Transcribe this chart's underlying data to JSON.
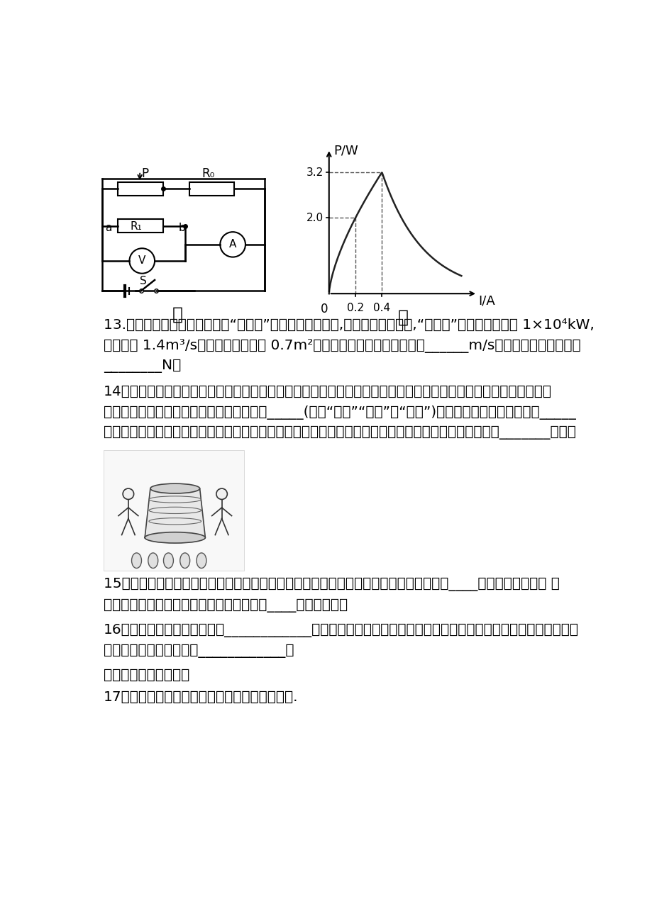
{
  "background_color": "#ffffff",
  "page_width": 9.2,
  "page_height": 13.02,
  "dpi": 100,
  "text_color": "#000000",
  "q13_lines": [
    "13.我国自主研制的绍吸挖泥船“天鼲号”达到世界先进水平,若某段工作时间内,“天鼲号”的泥泵功率恒为 1×10⁴kW,",
    "排泥量为 1.4m³/s，排泥管截面积为 0.7m²，泥浆在管中的流动的速度为______m/s，泥泵对泥浆的推力为",
    "________N。"
  ],
  "q14_lines": [
    "14．陕西的酱酒业有着悠久的历史，周王朝在都城镐京就曾设置专职酒官。如图是将谷物倒入锅中熏制酒料的过程。",
    "灶台下木柴燃烧的过程中，剩余木柴的热値_____(选填“变大”“变小”或“不变”)，熏制酒料的过程中是通过_____",
    "方式改变酒料的内能。随着酒料温度的上升，散发出的酒香更加浓郁，这是因为分子热运动的剖烈程度和_______有关。"
  ],
  "q15_lines": [
    "15．暑假高温天气在海边游泳时，会发现沙子被晗得发烫，而水温却不高，这是因为水的____比砂石更大的缘故 上",
    "岸后海风一吹会感觉冷，这是因为身上的水____吸热的缘故。"
  ],
  "q16_lines": [
    "16．用毛皮摩擦过的橡胶棒带____________电；冬天用塑料梳子梳头时，会发现头发丝会互相分开，这是因为头发",
    "丝带上了同种电荷而相互____________。"
  ],
  "section_header": "四、作图、实验探究题",
  "q17_text": "17．请根据图所示的实物图，画出对应的电路图.",
  "graph_ylabel": "P/W",
  "graph_xlabel": "I/A",
  "jia_label": "甲",
  "yi_label": "乙"
}
